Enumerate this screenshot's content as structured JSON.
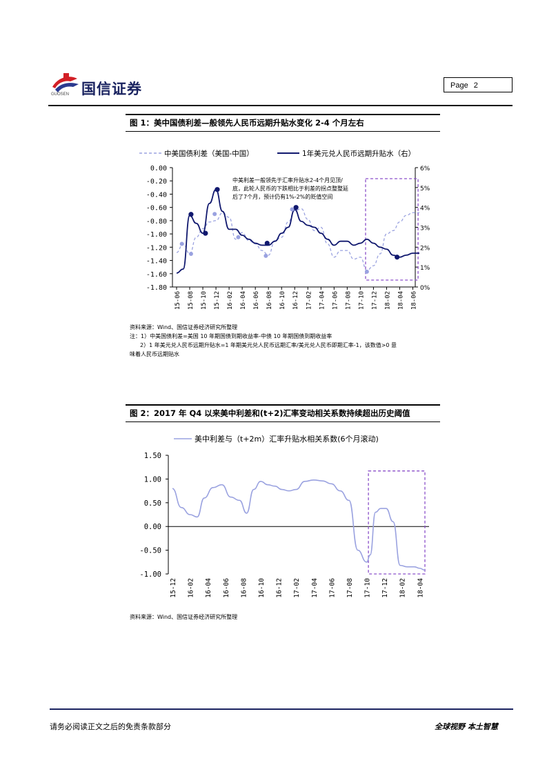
{
  "header": {
    "company_name": "国信证券",
    "company_en": "GUOSEN",
    "page_label": "Page",
    "page_number": "2"
  },
  "figure1": {
    "title": "图 1：美中国债利差—般领先人民币远期升贴水变化 2-4 个月左右",
    "source": "资料来源：Wind、国信证券经济研究所整理",
    "note1": "注：1）中美国债利差=美国 10 年期国债到期收益率-中债 10 年期国债到期收益率",
    "note2": "2）1 年美元兑人民币远期升贴水=1 年期美元兑人民币远期汇率/美元兑人民币即期汇率-1，该数值>0 意",
    "note3": "味着人民币远期贴水"
  },
  "figure2": {
    "title": "图 2：2017 年 Q4 以来美中利差和(t+2)汇率变动相关系数持续超出历史阈值",
    "source": "资料来源：Wind、国信证券经济研究所整理"
  },
  "chart_data": [
    {
      "type": "line",
      "legend": [
        "中美国债利差（美国-中国）",
        "1年美元兑人民币远期升贴水（右）"
      ],
      "annotation": [
        "中美利差一般领先于汇率升贴水2-4个月见顶/",
        "底，此轮人民币的下跌相比于利差的拐点整整延",
        "后了7个月，预计仍有1%-2%的贬值空间"
      ],
      "x_ticks": [
        "15-06",
        "15-08",
        "15-10",
        "15-12",
        "16-02",
        "16-04",
        "16-06",
        "16-08",
        "16-10",
        "16-12",
        "17-02",
        "17-04",
        "17-06",
        "17-08",
        "17-10",
        "17-12",
        "18-02",
        "18-04",
        "18-06"
      ],
      "y_left_ticks": [
        "0.00",
        "-0.20",
        "-0.40",
        "-0.60",
        "-0.80",
        "-1.00",
        "-1.20",
        "-1.40",
        "-1.60",
        "-1.80"
      ],
      "y_right_ticks": [
        "6%",
        "5%",
        "4%",
        "3%",
        "2%",
        "1%",
        "0%"
      ],
      "ylim_left": [
        -1.8,
        0.0
      ],
      "ylim_right": [
        0,
        6
      ],
      "series": [
        {
          "name": "中美国债利差（美国-中国）",
          "axis": "left",
          "style": "dashed",
          "color": "#9aa2e0",
          "x": [
            0,
            0.5,
            1,
            1.5,
            2,
            2.5,
            3,
            3.5,
            4,
            4.5,
            5,
            5.5,
            6,
            6.5,
            7,
            7.5,
            8,
            8.5,
            9,
            9.5,
            10,
            10.5,
            11,
            11.5,
            12,
            12.5,
            13,
            13.5,
            14,
            14.5,
            15,
            15.5,
            16,
            16.5,
            17,
            17.5,
            18,
            18.5
          ],
          "values": [
            -1.28,
            -1.15,
            -1.3,
            -1.05,
            -0.92,
            -0.82,
            -0.8,
            -0.68,
            -0.75,
            -1.08,
            -0.98,
            -1.1,
            -1.15,
            -1.25,
            -1.32,
            -1.1,
            -1.05,
            -0.82,
            -0.65,
            -0.62,
            -0.78,
            -0.95,
            -0.9,
            -1.15,
            -1.35,
            -1.25,
            -1.25,
            -1.38,
            -1.35,
            -1.55,
            -1.48,
            -1.3,
            -1.0,
            -0.95,
            -0.82,
            -0.72,
            -0.68,
            -0.68
          ]
        },
        {
          "name": "1年美元兑人民币远期升贴水（右）",
          "axis": "right",
          "style": "solid",
          "color": "#10186e",
          "x": [
            0,
            0.5,
            1,
            1.5,
            2,
            2.5,
            3,
            3.5,
            4,
            4.5,
            5,
            5.5,
            6,
            6.5,
            7,
            7.5,
            8,
            8.5,
            9,
            9.5,
            10,
            10.5,
            11,
            11.5,
            12,
            12.5,
            13,
            13.5,
            14,
            14.5,
            15,
            15.5,
            16,
            16.5,
            17,
            17.5,
            18,
            18.5
          ],
          "values": [
            0.7,
            0.9,
            3.6,
            3.2,
            2.7,
            4.2,
            4.9,
            3.8,
            2.9,
            2.9,
            2.6,
            2.4,
            2.2,
            2.1,
            2.1,
            2.3,
            2.7,
            3.0,
            3.9,
            3.3,
            3.1,
            3.0,
            2.7,
            2.4,
            2.1,
            2.3,
            2.3,
            2.1,
            2.2,
            2.4,
            2.2,
            2.0,
            1.9,
            1.6,
            1.5,
            1.6,
            1.7,
            1.7
          ]
        }
      ],
      "markers_left": [
        [
          0.4,
          -1.15
        ],
        [
          1.1,
          -1.3
        ],
        [
          2.9,
          -0.7
        ],
        [
          4.7,
          -1.05
        ],
        [
          6.8,
          -1.33
        ],
        [
          8.8,
          -0.63
        ],
        [
          14.5,
          -1.57
        ]
      ],
      "markers_right": [
        [
          1.1,
          3.65
        ],
        [
          2.2,
          2.7
        ],
        [
          3.1,
          4.9
        ],
        [
          6.9,
          2.2
        ],
        [
          9.1,
          4.0
        ],
        [
          16.8,
          1.5
        ]
      ],
      "highlight_x": [
        14.4,
        18.4
      ]
    },
    {
      "type": "line",
      "legend": [
        "美中利差与（t+2m）汇率升贴水相关系数(6个月滚动)"
      ],
      "x_ticks": [
        "15-12",
        "16-02",
        "16-04",
        "16-06",
        "16-08",
        "16-10",
        "16-12",
        "17-02",
        "17-04",
        "17-06",
        "17-08",
        "17-10",
        "17-12",
        "18-02",
        "18-04"
      ],
      "y_ticks": [
        "1.50",
        "1.00",
        "0.50",
        "0.00",
        "-0.50",
        "-1.00"
      ],
      "ylim": [
        -1.0,
        1.5
      ],
      "series": [
        {
          "name": "美中利差与（t+2m）汇率升贴水相关系数(6个月滚动)",
          "color": "#9aa2e0",
          "x": [
            0,
            0.5,
            1,
            1.4,
            1.8,
            2.3,
            2.8,
            3.3,
            3.8,
            4.2,
            4.6,
            5.0,
            5.4,
            5.8,
            6.2,
            6.6,
            7.0,
            7.5,
            8.0,
            8.5,
            9.0,
            9.5,
            10.0,
            10.5,
            11.0,
            11.2,
            11.5,
            11.8,
            12.1,
            12.5,
            12.9,
            13.3,
            13.7,
            14.0,
            14.3
          ],
          "values": [
            0.8,
            0.4,
            0.25,
            0.2,
            0.6,
            0.82,
            0.88,
            0.62,
            0.55,
            0.28,
            0.78,
            0.95,
            0.88,
            0.85,
            0.78,
            0.75,
            0.78,
            0.95,
            0.98,
            0.96,
            0.9,
            0.75,
            0.55,
            -0.5,
            -0.75,
            -0.6,
            0.3,
            0.38,
            0.38,
            0.1,
            -0.82,
            -0.85,
            -0.85,
            -0.88,
            -0.92
          ]
        }
      ],
      "highlight_x": [
        11.1,
        14.3
      ],
      "highlight_y": [
        -1.0,
        1.17
      ]
    }
  ],
  "footer": {
    "disclaimer": "请务必阅读正文之后的免责条款部分",
    "slogan": "全球视野 本土智慧"
  }
}
